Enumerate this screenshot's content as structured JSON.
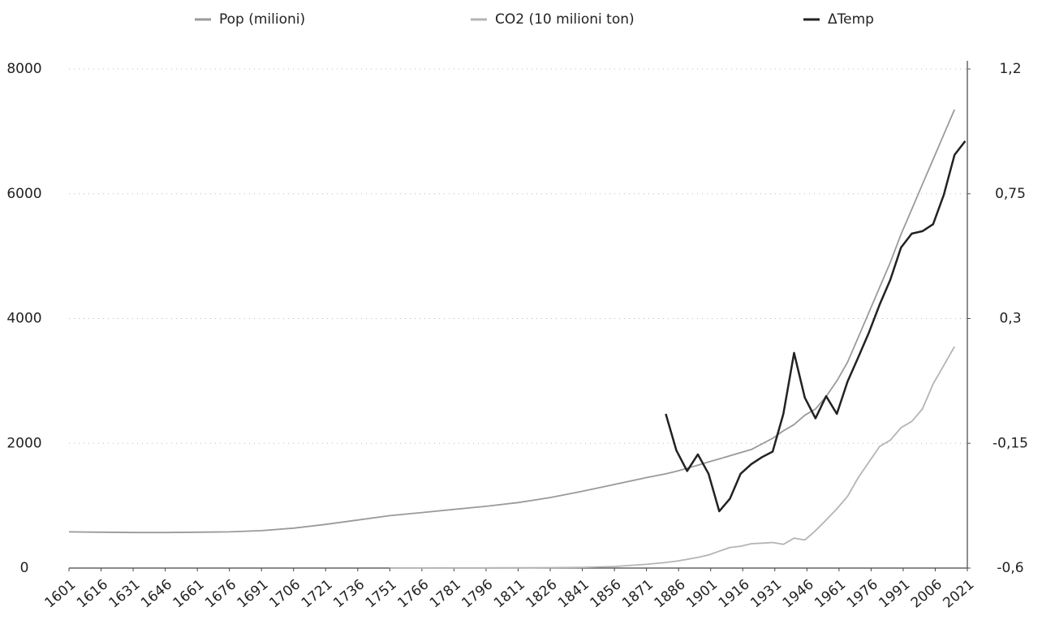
{
  "chart_data": {
    "type": "line",
    "x": [
      1601,
      1616,
      1631,
      1646,
      1661,
      1676,
      1691,
      1706,
      1721,
      1736,
      1751,
      1766,
      1781,
      1796,
      1811,
      1826,
      1841,
      1856,
      1871,
      1880,
      1885,
      1890,
      1895,
      1900,
      1905,
      1910,
      1915,
      1920,
      1925,
      1930,
      1935,
      1940,
      1945,
      1950,
      1955,
      1960,
      1965,
      1970,
      1975,
      1980,
      1985,
      1990,
      1995,
      2000,
      2005,
      2010,
      2015,
      2020
    ],
    "series": [
      {
        "name": "Pop (milioni)",
        "color": "#9a9a9a",
        "values": [
          580,
          575,
          570,
          570,
          575,
          580,
          600,
          640,
          700,
          770,
          840,
          890,
          940,
          990,
          1050,
          1130,
          1230,
          1340,
          1450,
          1510,
          1550,
          1600,
          1650,
          1700,
          1750,
          1800,
          1850,
          1900,
          1990,
          2080,
          2200,
          2300,
          2450,
          2550,
          2750,
          3000,
          3300,
          3700,
          4100,
          4500,
          4900,
          5350,
          5750,
          6150,
          6550,
          6950,
          7350,
          null
        ]
      },
      {
        "name": "CO2 (10 milioni ton)",
        "color": "#b4b4b4",
        "values": [
          null,
          null,
          null,
          null,
          null,
          null,
          null,
          null,
          null,
          null,
          1,
          1,
          2,
          3,
          4,
          6,
          10,
          25,
          60,
          90,
          110,
          140,
          170,
          210,
          270,
          330,
          350,
          390,
          400,
          410,
          380,
          480,
          450,
          600,
          770,
          950,
          1150,
          1450,
          1700,
          1950,
          2050,
          2250,
          2350,
          2550,
          2950,
          3250,
          3550,
          null
        ]
      },
      {
        "name": "ΔTemp",
        "color": "#222222",
        "axis": "y2",
        "values": [
          null,
          null,
          null,
          null,
          null,
          null,
          null,
          null,
          null,
          null,
          null,
          null,
          null,
          null,
          null,
          null,
          null,
          null,
          null,
          -0.044,
          -0.176,
          -0.25,
          -0.19,
          -0.26,
          -0.395,
          -0.35,
          -0.26,
          -0.225,
          -0.2,
          -0.18,
          -0.044,
          0.176,
          0.015,
          -0.06,
          0.02,
          -0.044,
          0.073,
          0.16,
          0.25,
          0.35,
          0.44,
          0.556,
          0.606,
          0.615,
          0.64,
          0.746,
          0.89,
          0.94
        ]
      }
    ],
    "xlim": [
      1601,
      2021
    ],
    "xticks": [
      1601,
      1616,
      1631,
      1646,
      1661,
      1676,
      1691,
      1706,
      1721,
      1736,
      1751,
      1766,
      1781,
      1796,
      1811,
      1826,
      1841,
      1856,
      1871,
      1886,
      1901,
      1916,
      1931,
      1946,
      1961,
      1976,
      1991,
      2006,
      2021
    ],
    "ylim": [
      0,
      8000
    ],
    "yticks": [
      0,
      2000,
      4000,
      6000,
      8000
    ],
    "y2lim": [
      -0.6,
      1.2
    ],
    "y2ticks": [
      {
        "value": -0.6,
        "label": "-0,6"
      },
      {
        "value": -0.15,
        "label": "-0,15"
      },
      {
        "value": 0.3,
        "label": "0,3"
      },
      {
        "value": 0.75,
        "label": "0,75"
      },
      {
        "value": 1.2,
        "label": "1,2"
      }
    ],
    "grid": true,
    "legend": "top"
  }
}
